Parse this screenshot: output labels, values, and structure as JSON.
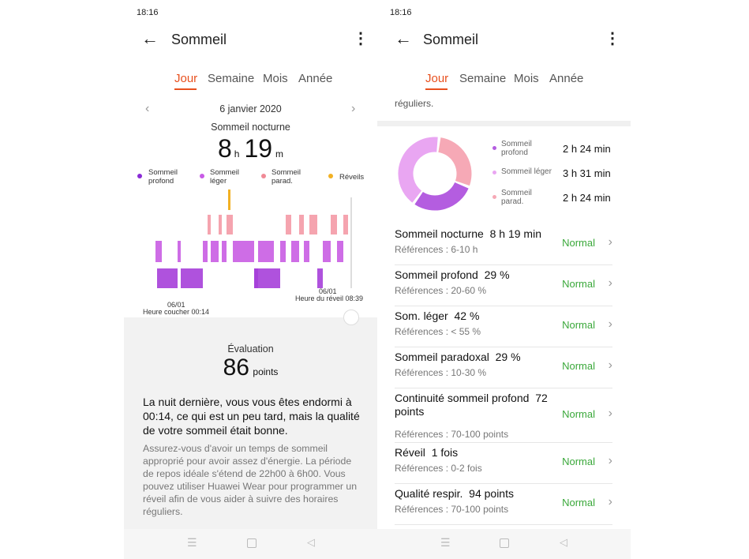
{
  "screens": [
    {
      "time": "18:16",
      "title": "Sommeil",
      "tabs": [
        "Jour",
        "Semaine",
        "Mois",
        "Année"
      ]
    },
    {
      "time": "18:16",
      "title": "Sommeil",
      "tabs": [
        "Jour",
        "Semaine",
        "Mois",
        "Année"
      ]
    }
  ],
  "left": {
    "date": "6 janvier 2020",
    "heading": "Sommeil nocturne",
    "hours": "8",
    "h_unit": "h",
    "minutes": "19",
    "m_unit": "m",
    "legend": [
      "Sommeil profond",
      "Sommeil léger",
      "Sommeil parad.",
      "Réveils"
    ],
    "start_date": "06/01",
    "start_label": "Heure coucher 00:14",
    "end_date": "06/01",
    "end_label": "Heure du réveil 08:39",
    "evaluation_label": "Évaluation",
    "score": "86",
    "score_unit": "points",
    "summary": "La nuit dernière, vous vous êtes endormi à 00:14, ce qui est un peu tard, mais la qualité de votre sommeil était bonne.",
    "advice": "Assurez-vous d'avoir un temps de sommeil approprié pour avoir assez d'énergie. La période de repos idéale s'étend de 22h00 à 6h00. Vous pouvez utiliser Huawei Wear pour programmer un réveil afin de vous aider à suivre des horaires réguliers."
  },
  "right": {
    "cut_text": "réguliers.",
    "breakdown": [
      {
        "name": "Sommeil profond",
        "duration": "2 h 24 min",
        "color": "#b45de0"
      },
      {
        "name": "Sommeil léger",
        "duration": "3 h 31 min",
        "color": "#e9a6f2"
      },
      {
        "name": "Sommeil parad.",
        "duration": "2 h 24 min",
        "color": "#f6a9b6"
      }
    ],
    "rows": [
      {
        "title": "Sommeil nocturne",
        "value": "8 h 19 min",
        "reference": "Références : 6-10 h",
        "status": "Normal"
      },
      {
        "title": "Sommeil profond",
        "value": 29,
        "unit": "%",
        "reference": "Références : 20-60 %",
        "status": "Normal"
      },
      {
        "title": "Som. léger",
        "value": 42,
        "unit": "%",
        "reference": "Références : < 55 %",
        "status": "Normal"
      },
      {
        "title": "Sommeil paradoxal",
        "value": 29,
        "unit": "%",
        "reference": "Références : 10-30 %",
        "status": "Normal"
      },
      {
        "title": "Continuité sommeil profond",
        "value": "72 points",
        "reference": "Références : 70-100 points",
        "status": "Normal"
      },
      {
        "title": "Réveil",
        "value": "1 fois",
        "reference": "Références : 0-2 fois",
        "status": "Normal"
      },
      {
        "title": "Qualité respir.",
        "value": "94 points",
        "reference": "Références : 70-100 points",
        "status": "Normal"
      }
    ]
  }
}
